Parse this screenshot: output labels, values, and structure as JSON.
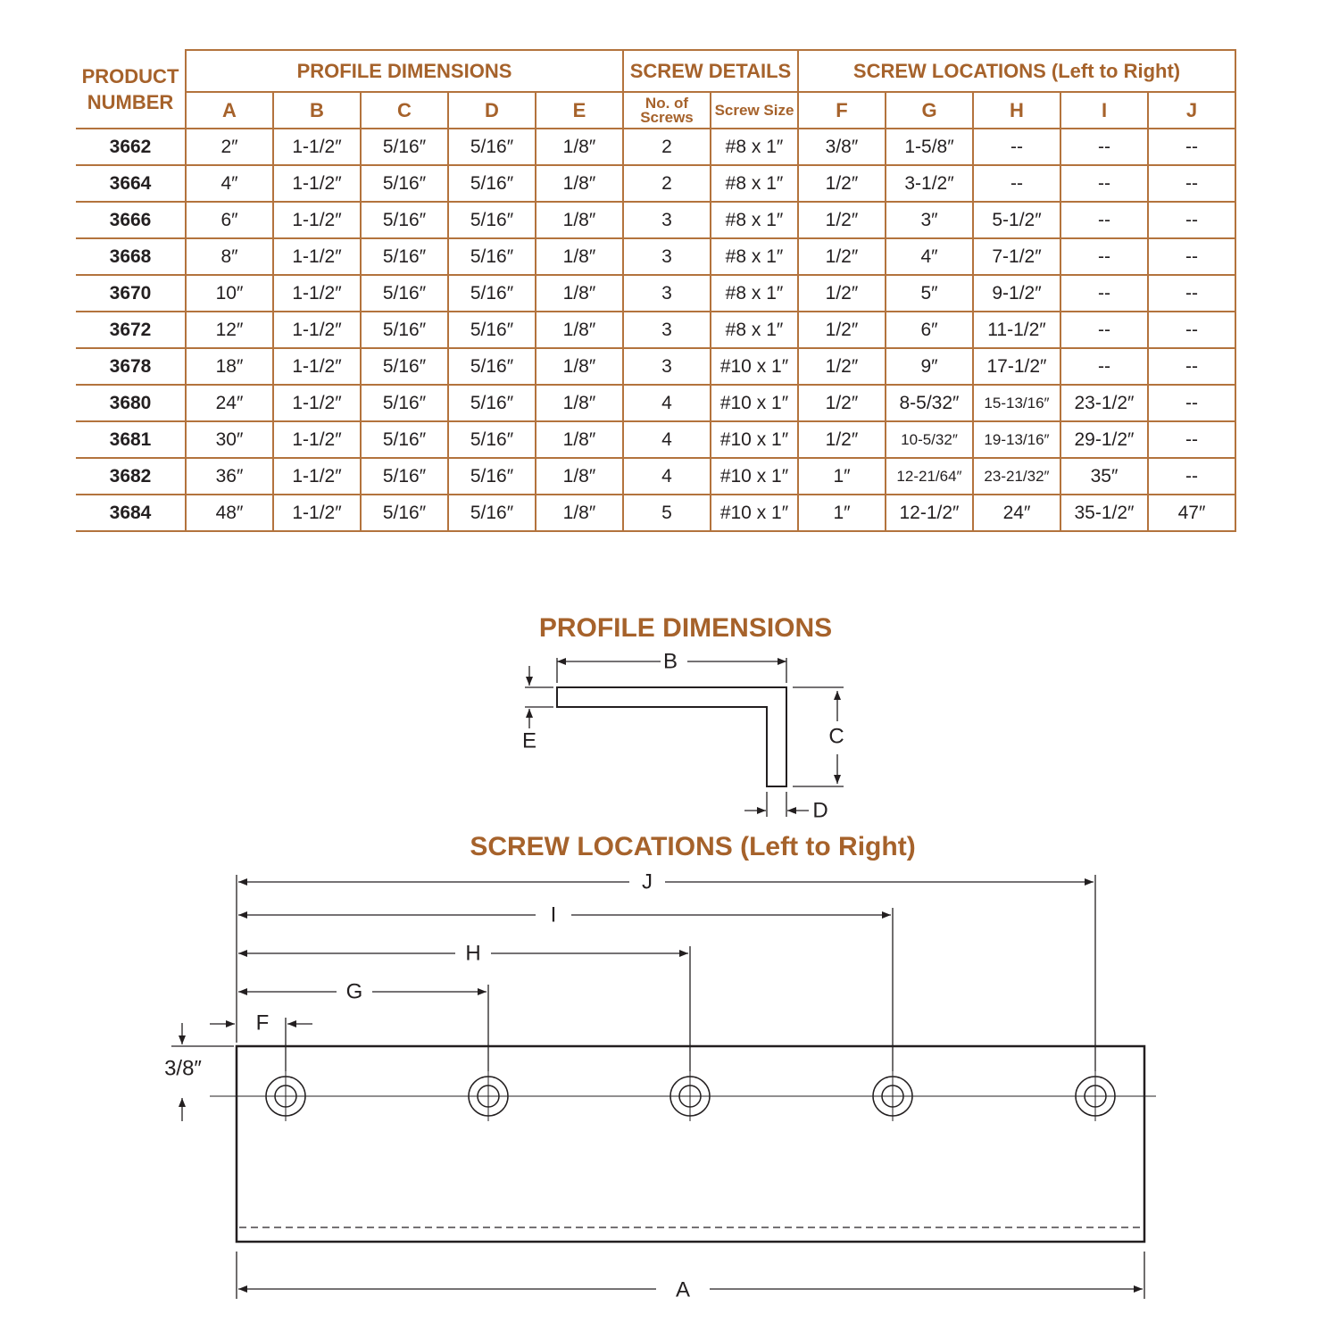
{
  "table": {
    "product_header": "PRODUCT NUMBER",
    "groups": [
      "PROFILE DIMENSIONS",
      "SCREW DETAILS",
      "SCREW LOCATIONS (Left to Right)"
    ],
    "columns": [
      "A",
      "B",
      "C",
      "D",
      "E",
      "No. of Screws",
      "Screw Size",
      "F",
      "G",
      "H",
      "I",
      "J"
    ],
    "rows": [
      [
        "3662",
        "2″",
        "1-1/2″",
        "5/16″",
        "5/16″",
        "1/8″",
        "2",
        "#8 x 1″",
        "3/8″",
        "1-5/8″",
        "--",
        "--",
        "--"
      ],
      [
        "3664",
        "4″",
        "1-1/2″",
        "5/16″",
        "5/16″",
        "1/8″",
        "2",
        "#8 x 1″",
        "1/2″",
        "3-1/2″",
        "--",
        "--",
        "--"
      ],
      [
        "3666",
        "6″",
        "1-1/2″",
        "5/16″",
        "5/16″",
        "1/8″",
        "3",
        "#8 x 1″",
        "1/2″",
        "3″",
        "5-1/2″",
        "--",
        "--"
      ],
      [
        "3668",
        "8″",
        "1-1/2″",
        "5/16″",
        "5/16″",
        "1/8″",
        "3",
        "#8 x 1″",
        "1/2″",
        "4″",
        "7-1/2″",
        "--",
        "--"
      ],
      [
        "3670",
        "10″",
        "1-1/2″",
        "5/16″",
        "5/16″",
        "1/8″",
        "3",
        "#8 x 1″",
        "1/2″",
        "5″",
        "9-1/2″",
        "--",
        "--"
      ],
      [
        "3672",
        "12″",
        "1-1/2″",
        "5/16″",
        "5/16″",
        "1/8″",
        "3",
        "#8 x 1″",
        "1/2″",
        "6″",
        "11-1/2″",
        "--",
        "--"
      ],
      [
        "3678",
        "18″",
        "1-1/2″",
        "5/16″",
        "5/16″",
        "1/8″",
        "3",
        "#10 x 1″",
        "1/2″",
        "9″",
        "17-1/2″",
        "--",
        "--"
      ],
      [
        "3680",
        "24″",
        "1-1/2″",
        "5/16″",
        "5/16″",
        "1/8″",
        "4",
        "#10 x 1″",
        "1/2″",
        "8-5/32″",
        "15-13/16″",
        "23-1/2″",
        "--"
      ],
      [
        "3681",
        "30″",
        "1-1/2″",
        "5/16″",
        "5/16″",
        "1/8″",
        "4",
        "#10 x 1″",
        "1/2″",
        "10-5/32″",
        "19-13/16″",
        "29-1/2″",
        "--"
      ],
      [
        "3682",
        "36″",
        "1-1/2″",
        "5/16″",
        "5/16″",
        "1/8″",
        "4",
        "#10 x 1″",
        "1″",
        "12-21/64″",
        "23-21/32″",
        "35″",
        "--"
      ],
      [
        "3684",
        "48″",
        "1-1/2″",
        "5/16″",
        "5/16″",
        "1/8″",
        "5",
        "#10 x 1″",
        "1″",
        "12-1/2″",
        "24″",
        "35-1/2″",
        "47″"
      ]
    ]
  },
  "profile_diagram": {
    "title": "PROFILE DIMENSIONS",
    "b": "B",
    "c": "C",
    "d": "D",
    "e": "E"
  },
  "screw_diagram": {
    "title": "SCREW LOCATIONS (Left to Right)",
    "f": "F",
    "g": "G",
    "h": "H",
    "i": "I",
    "j": "J",
    "a": "A",
    "offset": "3/8″"
  }
}
